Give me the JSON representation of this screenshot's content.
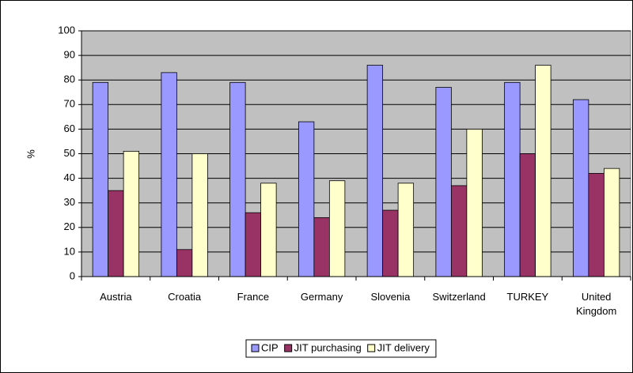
{
  "chart_data": {
    "type": "bar",
    "y_label": "%",
    "categories": [
      "Austria",
      "Croatia",
      "France",
      "Germany",
      "Slovenia",
      "Switzerland",
      "TURKEY",
      "United Kingdom"
    ],
    "series": [
      {
        "name": "CIP",
        "color": "#9999ff",
        "values": [
          79,
          83,
          79,
          63,
          86,
          77,
          79,
          72
        ]
      },
      {
        "name": "JIT purchasing",
        "color": "#993366",
        "values": [
          35,
          11,
          26,
          24,
          27,
          37,
          50,
          42
        ]
      },
      {
        "name": "JIT delivery",
        "color": "#ffffcc",
        "values": [
          51,
          50,
          38,
          39,
          38,
          60,
          86,
          44
        ]
      }
    ],
    "ylim": [
      0,
      100
    ],
    "yticks": [
      0,
      10,
      20,
      30,
      40,
      50,
      60,
      70,
      80,
      90,
      100
    ],
    "grid": true,
    "legend": "bottom",
    "plot_background": "#c0c0c0"
  }
}
